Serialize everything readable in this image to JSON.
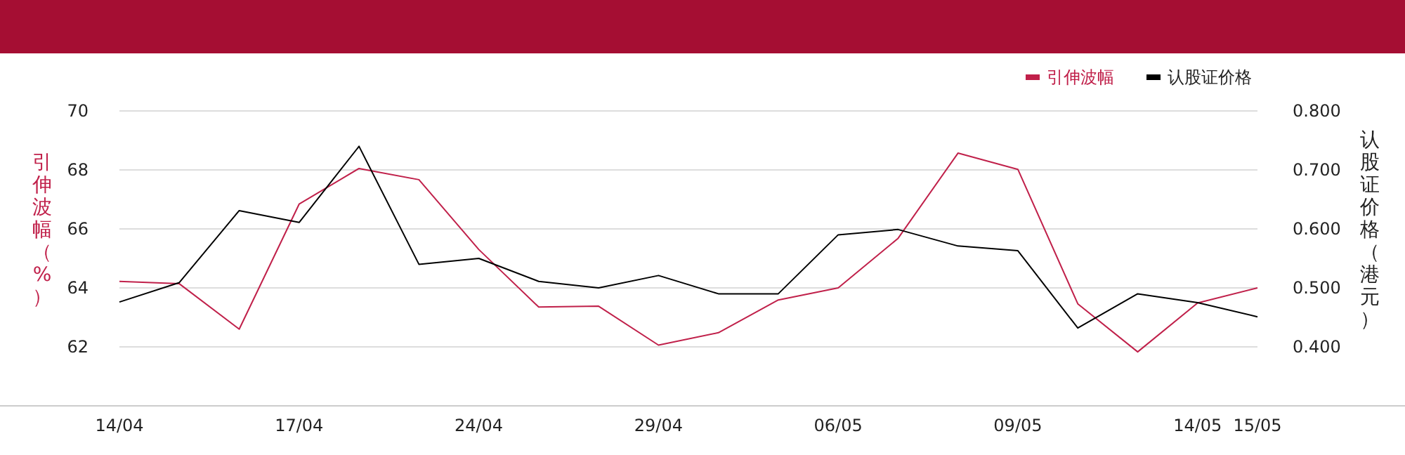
{
  "chart_data": {
    "type": "line",
    "categories": [
      "14/04",
      null,
      null,
      "17/04",
      null,
      null,
      "24/04",
      null,
      null,
      "29/04",
      null,
      null,
      "06/05",
      null,
      null,
      "09/05",
      null,
      null,
      "14/05",
      "15/05"
    ],
    "series": [
      {
        "name": "引伸波幅",
        "color": "#c0204a",
        "values": [
          64.22,
          64.14,
          62.6,
          66.84,
          68.05,
          67.67,
          65.3,
          63.35,
          63.38,
          62.06,
          62.48,
          63.59,
          64.0,
          65.68,
          68.57,
          68.02,
          63.46,
          61.83,
          63.49,
          64.0
        ]
      },
      {
        "name": "认股证价格",
        "color": "#000000",
        "axis": "y2",
        "values": [
          0.476,
          0.509,
          0.631,
          0.611,
          0.74,
          0.54,
          0.55,
          0.511,
          0.5,
          0.521,
          0.49,
          0.49,
          0.59,
          0.599,
          0.571,
          0.563,
          0.432,
          0.49,
          0.475,
          0.451
        ]
      }
    ],
    "ylabel": "引伸波幅（%）",
    "y2label": "认股证价格（港元）",
    "ylim": [
      60,
      70
    ],
    "yticks": [
      62,
      64,
      66,
      68,
      70
    ],
    "y2lim": [
      0.3,
      0.8
    ],
    "y2ticks": [
      {
        "value": 0.4,
        "label": "0.400"
      },
      {
        "value": 0.5,
        "label": "0.500"
      },
      {
        "value": 0.6,
        "label": "0.600"
      },
      {
        "value": 0.7,
        "label": "0.700"
      },
      {
        "value": 0.8,
        "label": "0.800"
      }
    ],
    "grid": "y",
    "legend": "top right",
    "marker": "none",
    "line_style": "solid"
  }
}
